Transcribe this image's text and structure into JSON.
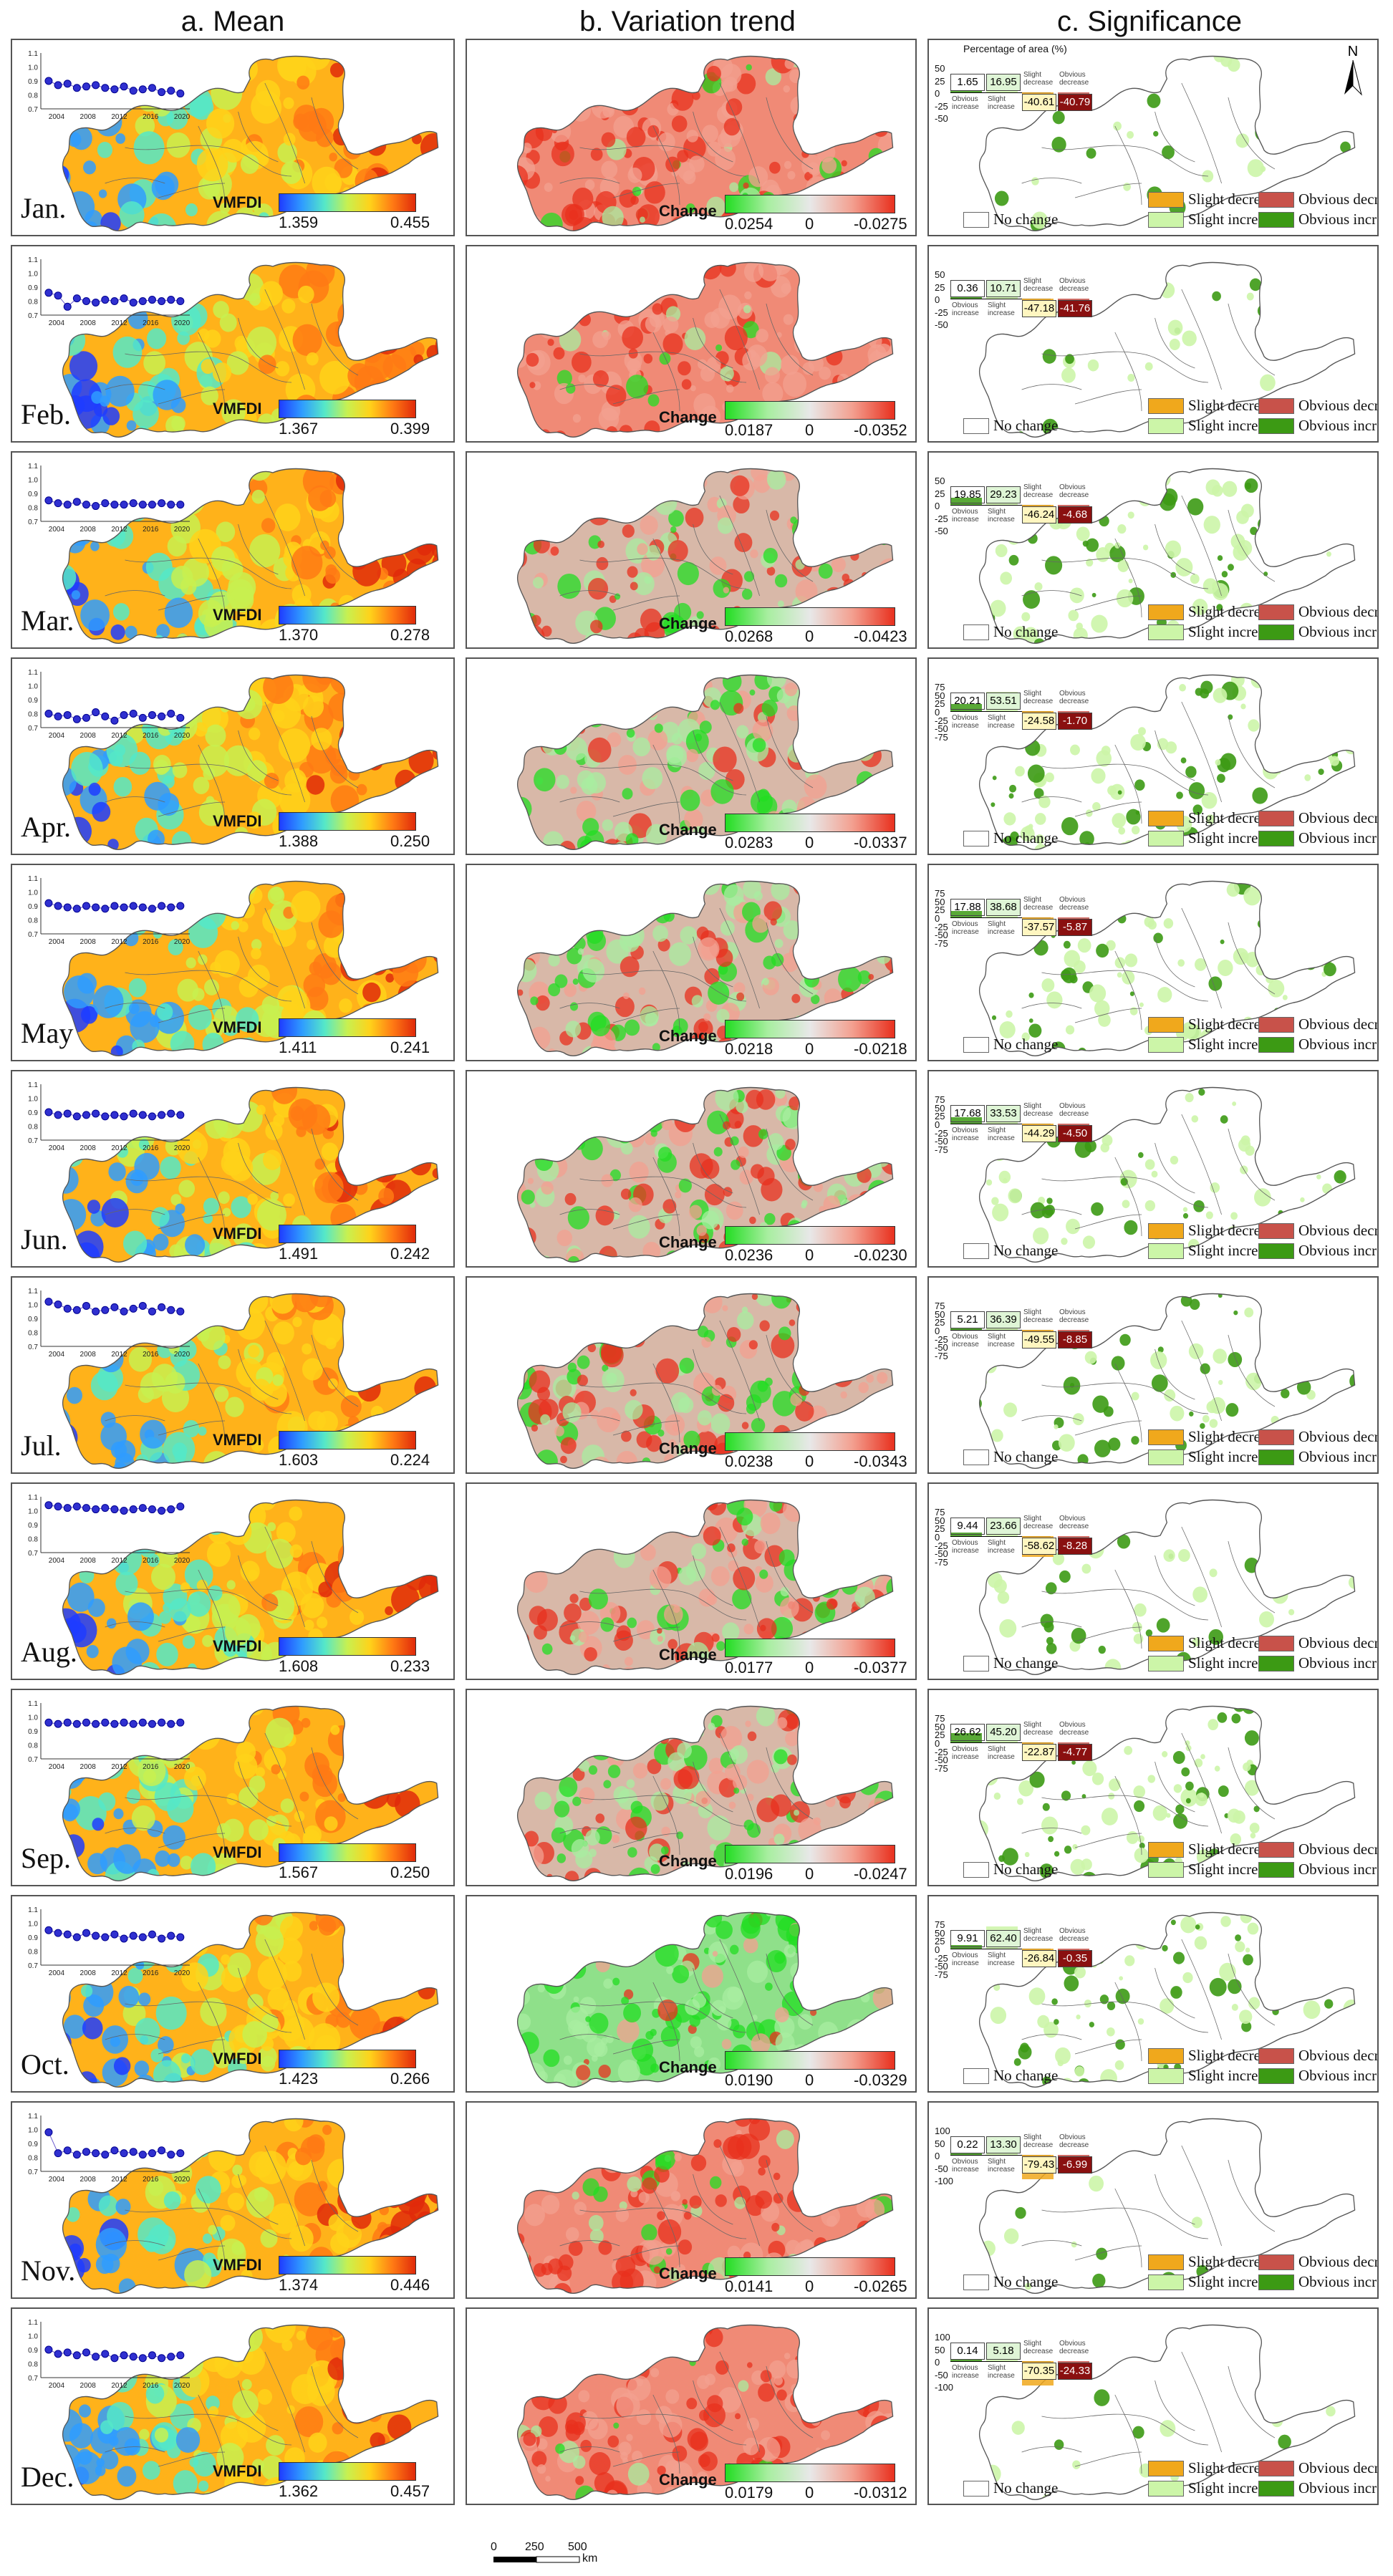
{
  "columns": {
    "mean": "a. Mean",
    "trend": "b. Variation trend",
    "significance": "c. Significance"
  },
  "mean_colorbar_title": "VMFDI",
  "trend_colorbar_title": "Change",
  "zero_label": "0",
  "colors": {
    "mean_ramp": [
      "#1f3cff",
      "#2f9cff",
      "#55e8c8",
      "#c8f050",
      "#ffd21a",
      "#ff7a14",
      "#e02a0a"
    ],
    "trend_ramp": [
      "#22dd22",
      "#a8eea0",
      "#e8e8e8",
      "#f3a090",
      "#e8301e"
    ],
    "slight_decrease": "#f0a81c",
    "obvious_decrease": "#c8524a",
    "slight_increase": "#ccf5a8",
    "obvious_increase": "#3c9a14",
    "no_change": "#ffffff"
  },
  "inset_axes": {
    "x_ticks": [
      "2004",
      "2008",
      "2012",
      "2016",
      "2020"
    ],
    "y_ticks": [
      "0.7",
      "0.8",
      "0.9",
      "1.0",
      "1.1"
    ]
  },
  "significance_title": "Percentage of area (%)",
  "legend": {
    "slight_decrease": "Slight decrease",
    "obvious_decrease": "Obvious decrease",
    "slight_increase": "Slight increase",
    "obvious_increase": "Obvious increase",
    "no_change": "No change"
  },
  "bar_categories": {
    "obvious_increase": "Obvious increase",
    "slight_increase": "Slight increase",
    "slight_decrease": "Slight decrease",
    "obvious_decrease": "Obvious decrease"
  },
  "north_label": "N",
  "scale_bar": {
    "ticks": [
      "0",
      "250",
      "500"
    ],
    "unit": "km"
  },
  "months": [
    {
      "label": "Jan.",
      "mean_min": "1.359",
      "mean_max": "0.455",
      "trend_min": "0.0254",
      "trend_max": "-0.0275",
      "y_ticks": [
        "50",
        "25",
        "0",
        "-25",
        "-50"
      ],
      "oi": "1.65",
      "si": "16.95",
      "sd": "-40.61",
      "od": "-40.79",
      "sig_level": 0.15,
      "inset": [
        0.9,
        0.87,
        0.88,
        0.85,
        0.86,
        0.87,
        0.85,
        0.84,
        0.86,
        0.83,
        0.84,
        0.85,
        0.82,
        0.83,
        0.81
      ]
    },
    {
      "label": "Feb.",
      "mean_min": "1.367",
      "mean_max": "0.399",
      "trend_min": "0.0187",
      "trend_max": "-0.0352",
      "y_ticks": [
        "50",
        "25",
        "0",
        "-25",
        "-50"
      ],
      "oi": "0.36",
      "si": "10.71",
      "sd": "-47.18",
      "od": "-41.76",
      "sig_level": 0.1,
      "inset": [
        0.86,
        0.84,
        0.76,
        0.82,
        0.8,
        0.79,
        0.81,
        0.8,
        0.82,
        0.79,
        0.8,
        0.81,
        0.8,
        0.81,
        0.8
      ]
    },
    {
      "label": "Mar.",
      "mean_min": "1.370",
      "mean_max": "0.278",
      "trend_min": "0.0268",
      "trend_max": "-0.0423",
      "y_ticks": [
        "50",
        "25",
        "0",
        "-25",
        "-50"
      ],
      "oi": "19.85",
      "si": "29.23",
      "sd": "-46.24",
      "od": "-4.68",
      "sig_level": 0.55,
      "inset": [
        0.85,
        0.83,
        0.82,
        0.84,
        0.82,
        0.81,
        0.83,
        0.82,
        0.82,
        0.83,
        0.82,
        0.82,
        0.83,
        0.82,
        0.82
      ]
    },
    {
      "label": "Apr.",
      "mean_min": "1.388",
      "mean_max": "0.250",
      "trend_min": "0.0283",
      "trend_max": "-0.0337",
      "y_ticks": [
        "75",
        "50",
        "25",
        "0",
        "-25",
        "-50",
        "-75"
      ],
      "oi": "20.21",
      "si": "53.51",
      "sd": "-24.58",
      "od": "-1.70",
      "sig_level": 0.6,
      "inset": [
        0.8,
        0.78,
        0.79,
        0.76,
        0.77,
        0.81,
        0.78,
        0.75,
        0.79,
        0.8,
        0.77,
        0.79,
        0.78,
        0.8,
        0.77
      ]
    },
    {
      "label": "May",
      "mean_min": "1.411",
      "mean_max": "0.241",
      "trend_min": "0.0218",
      "trend_max": "-0.0218",
      "y_ticks": [
        "75",
        "50",
        "25",
        "0",
        "-25",
        "-50",
        "-75"
      ],
      "oi": "17.88",
      "si": "38.68",
      "sd": "-37.57",
      "od": "-5.87",
      "sig_level": 0.5,
      "inset": [
        0.92,
        0.9,
        0.89,
        0.88,
        0.9,
        0.89,
        0.88,
        0.9,
        0.89,
        0.9,
        0.89,
        0.88,
        0.9,
        0.89,
        0.9
      ]
    },
    {
      "label": "Jun.",
      "mean_min": "1.491",
      "mean_max": "0.242",
      "trend_min": "0.0236",
      "trend_max": "-0.0230",
      "y_ticks": [
        "75",
        "50",
        "25",
        "0",
        "-25",
        "-50",
        "-75"
      ],
      "oi": "17.68",
      "si": "33.53",
      "sd": "-44.29",
      "od": "-4.50",
      "sig_level": 0.45,
      "inset": [
        0.9,
        0.88,
        0.89,
        0.87,
        0.88,
        0.89,
        0.87,
        0.88,
        0.87,
        0.89,
        0.88,
        0.87,
        0.88,
        0.89,
        0.88
      ]
    },
    {
      "label": "Jul.",
      "mean_min": "1.603",
      "mean_max": "0.224",
      "trend_min": "0.0238",
      "trend_max": "-0.0343",
      "y_ticks": [
        "75",
        "50",
        "25",
        "0",
        "-25",
        "-50",
        "-75"
      ],
      "oi": "5.21",
      "si": "36.39",
      "sd": "-49.55",
      "od": "-8.85",
      "sig_level": 0.3,
      "inset": [
        1.02,
        1.0,
        0.97,
        0.96,
        0.99,
        0.95,
        0.96,
        0.98,
        0.95,
        0.97,
        0.99,
        0.95,
        0.98,
        0.96,
        0.95
      ]
    },
    {
      "label": "Aug.",
      "mean_min": "1.608",
      "mean_max": "0.233",
      "trend_min": "0.0177",
      "trend_max": "-0.0377",
      "y_ticks": [
        "75",
        "50",
        "25",
        "0",
        "-25",
        "-50",
        "-75"
      ],
      "oi": "9.44",
      "si": "23.66",
      "sd": "-58.62",
      "od": "-8.28",
      "sig_level": 0.3,
      "inset": [
        1.04,
        1.03,
        1.02,
        1.03,
        1.02,
        1.01,
        1.02,
        1.01,
        1.0,
        1.01,
        1.02,
        1.01,
        1.0,
        1.01,
        1.03
      ]
    },
    {
      "label": "Sep.",
      "mean_min": "1.567",
      "mean_max": "0.250",
      "trend_min": "0.0196",
      "trend_max": "-0.0247",
      "y_ticks": [
        "75",
        "50",
        "25",
        "0",
        "-25",
        "-50",
        "-75"
      ],
      "oi": "26.62",
      "si": "45.20",
      "sd": "-22.87",
      "od": "-4.77",
      "sig_level": 0.6,
      "inset": [
        0.96,
        0.95,
        0.96,
        0.95,
        0.96,
        0.95,
        0.96,
        0.95,
        0.96,
        0.95,
        0.96,
        0.95,
        0.96,
        0.95,
        0.96
      ]
    },
    {
      "label": "Oct.",
      "mean_min": "1.423",
      "mean_max": "0.266",
      "trend_min": "0.0190",
      "trend_max": "-0.0329",
      "y_ticks": [
        "75",
        "50",
        "25",
        "0",
        "-25",
        "-50",
        "-75"
      ],
      "oi": "9.91",
      "si": "62.40",
      "sd": "-26.84",
      "od": "-0.35",
      "sig_level": 0.45,
      "inset": [
        0.95,
        0.93,
        0.92,
        0.9,
        0.93,
        0.91,
        0.9,
        0.92,
        0.89,
        0.91,
        0.9,
        0.92,
        0.89,
        0.91,
        0.9
      ]
    },
    {
      "label": "Nov.",
      "mean_min": "1.374",
      "mean_max": "0.446",
      "trend_min": "0.0141",
      "trend_max": "-0.0265",
      "y_ticks": [
        "100",
        "50",
        "0",
        "-50",
        "-100"
      ],
      "oi": "0.22",
      "si": "13.30",
      "sd": "-79.43",
      "od": "-6.99",
      "sig_level": 0.12,
      "inset": [
        0.98,
        0.83,
        0.85,
        0.82,
        0.84,
        0.83,
        0.82,
        0.85,
        0.83,
        0.84,
        0.82,
        0.83,
        0.85,
        0.82,
        0.83
      ]
    },
    {
      "label": "Dec.",
      "mean_min": "1.362",
      "mean_max": "0.457",
      "trend_min": "0.0179",
      "trend_max": "-0.0312",
      "y_ticks": [
        "100",
        "50",
        "0",
        "-50",
        "-100"
      ],
      "oi": "0.14",
      "si": "5.18",
      "sd": "-70.35",
      "od": "-24.33",
      "sig_level": 0.08,
      "inset": [
        0.9,
        0.87,
        0.88,
        0.86,
        0.88,
        0.85,
        0.87,
        0.84,
        0.86,
        0.85,
        0.84,
        0.86,
        0.84,
        0.85,
        0.86
      ]
    }
  ]
}
